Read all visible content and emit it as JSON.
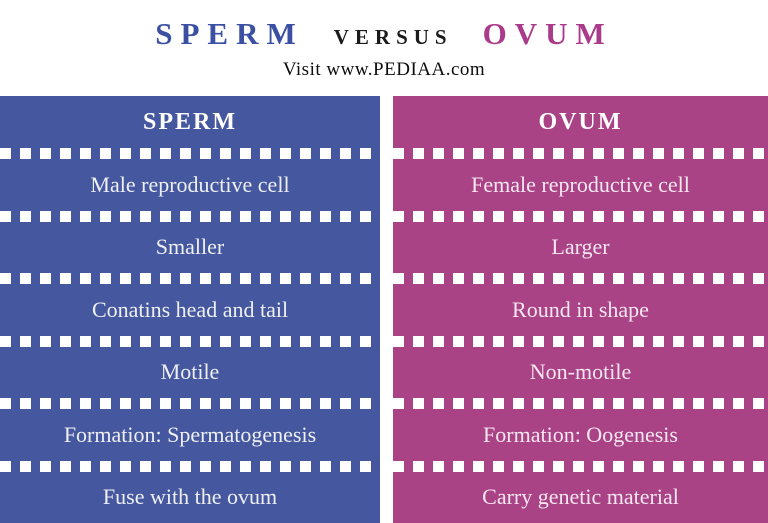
{
  "title": {
    "left": "SPERM",
    "middle": "VERSUS",
    "right": "OVUM"
  },
  "subtitle": "Visit www.PEDIAA.com",
  "colors": {
    "sperm_column": "#45579e",
    "ovum_column": "#aa4286",
    "title_sperm": "#3b50a3",
    "title_ovum": "#aa3a8a",
    "title_versus": "#1b1b1b",
    "divider_dashes": "#ffffff"
  },
  "table": {
    "columns": [
      {
        "header": "SPERM",
        "rows": [
          "Male reproductive cell",
          "Smaller",
          "Conatins head and tail",
          "Motile",
          "Formation: Spermatogenesis",
          "Fuse with the ovum"
        ]
      },
      {
        "header": "OVUM",
        "rows": [
          "Female reproductive cell",
          "Larger",
          "Round in shape",
          "Non-motile",
          "Formation: Oogenesis",
          "Carry genetic material"
        ]
      }
    ]
  }
}
